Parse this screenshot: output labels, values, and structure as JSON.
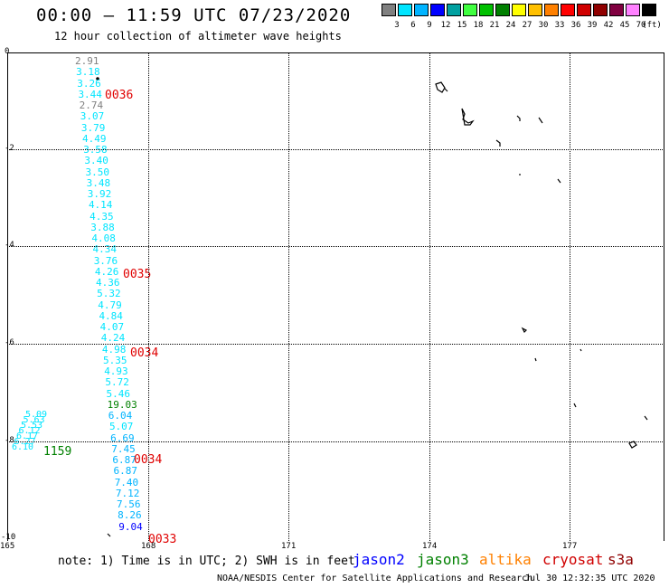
{
  "header": {
    "title": "00:00 – 11:59 UTC 07/23/2020",
    "subtitle": "12 hour collection of altimeter wave heights"
  },
  "legend": {
    "unit": "(ft)",
    "items": [
      {
        "label": "",
        "color": "#808080"
      },
      {
        "label": "3",
        "color": "#00e5ff"
      },
      {
        "label": "6",
        "color": "#00b4ff"
      },
      {
        "label": "9",
        "color": "#0000ff"
      },
      {
        "label": "12",
        "color": "#00a0a0"
      },
      {
        "label": "15",
        "color": "#40ff40"
      },
      {
        "label": "18",
        "color": "#00c000"
      },
      {
        "label": "21",
        "color": "#008000"
      },
      {
        "label": "24",
        "color": "#ffff00"
      },
      {
        "label": "27",
        "color": "#ffc000"
      },
      {
        "label": "30",
        "color": "#ff8000"
      },
      {
        "label": "33",
        "color": "#ff0000"
      },
      {
        "label": "36",
        "color": "#d00000"
      },
      {
        "label": "39",
        "color": "#900000"
      },
      {
        "label": "42",
        "color": "#800040"
      },
      {
        "label": "45",
        "color": "#ff80ff"
      },
      {
        "label": "70",
        "color": "#000000"
      }
    ]
  },
  "map": {
    "y_labels": [
      "0",
      "-2",
      "-4",
      "-6",
      "-8",
      "-10"
    ],
    "x_labels": [
      "165",
      "168",
      "171",
      "174",
      "177"
    ],
    "wave_heights": [
      {
        "v": "2.91",
        "c": "#808080"
      },
      {
        "v": "3.18",
        "c": "#00e5ff"
      },
      {
        "v": "3.26",
        "c": "#00e5ff"
      },
      {
        "v": "3.44",
        "c": "#00e5ff"
      },
      {
        "v": "2.74",
        "c": "#808080"
      },
      {
        "v": "3.07",
        "c": "#00e5ff"
      },
      {
        "v": "3.79",
        "c": "#00e5ff"
      },
      {
        "v": "4.49",
        "c": "#00e5ff"
      },
      {
        "v": "3.58",
        "c": "#00e5ff"
      },
      {
        "v": "3.40",
        "c": "#00e5ff"
      },
      {
        "v": "3.50",
        "c": "#00e5ff"
      },
      {
        "v": "3.48",
        "c": "#00e5ff"
      },
      {
        "v": "3.92",
        "c": "#00e5ff"
      },
      {
        "v": "4.14",
        "c": "#00e5ff"
      },
      {
        "v": "4.35",
        "c": "#00e5ff"
      },
      {
        "v": "3.88",
        "c": "#00e5ff"
      },
      {
        "v": "4.08",
        "c": "#00e5ff"
      },
      {
        "v": "4.34",
        "c": "#00e5ff"
      },
      {
        "v": "3.76",
        "c": "#00e5ff"
      },
      {
        "v": "4.26",
        "c": "#00e5ff"
      },
      {
        "v": "4.36",
        "c": "#00e5ff"
      },
      {
        "v": "5.32",
        "c": "#00e5ff"
      },
      {
        "v": "4.79",
        "c": "#00e5ff"
      },
      {
        "v": "4.84",
        "c": "#00e5ff"
      },
      {
        "v": "4.07",
        "c": "#00e5ff"
      },
      {
        "v": "4.24",
        "c": "#00e5ff"
      },
      {
        "v": "4.98",
        "c": "#00e5ff"
      },
      {
        "v": "5.35",
        "c": "#00e5ff"
      },
      {
        "v": "4.93",
        "c": "#00e5ff"
      },
      {
        "v": "5.72",
        "c": "#00e5ff"
      },
      {
        "v": "5.46",
        "c": "#00e5ff"
      },
      {
        "v": "19.03",
        "c": "#008000"
      },
      {
        "v": "6.04",
        "c": "#00b4ff"
      },
      {
        "v": "5.07",
        "c": "#00e5ff"
      },
      {
        "v": "6.69",
        "c": "#00b4ff"
      },
      {
        "v": "7.45",
        "c": "#00b4ff"
      },
      {
        "v": "6.87",
        "c": "#00b4ff"
      },
      {
        "v": "6.87",
        "c": "#00b4ff"
      },
      {
        "v": "7.40",
        "c": "#00b4ff"
      },
      {
        "v": "7.12",
        "c": "#00b4ff"
      },
      {
        "v": "7.56",
        "c": "#00b4ff"
      },
      {
        "v": "8.26",
        "c": "#00b4ff"
      },
      {
        "v": "9.04",
        "c": "#0000ff"
      }
    ],
    "timestamps": [
      "0036",
      "0035",
      "0034",
      "0034",
      "0033"
    ],
    "jason3_time": "1159",
    "jason3_track": [
      "5.09",
      "5.63",
      "5.53",
      "6.12",
      "6.17",
      "6.27",
      "6.10"
    ]
  },
  "footer": {
    "note": "note: 1) Time is in UTC; 2) SWH is in feet",
    "satellites": [
      {
        "name": "jason2",
        "color": "#0000ff"
      },
      {
        "name": "jason3",
        "color": "#008000"
      },
      {
        "name": "altika",
        "color": "#ff8000"
      },
      {
        "name": "cryosat",
        "color": "#d00000"
      },
      {
        "name": "s3a",
        "color": "#900000"
      }
    ],
    "credit": "NOAA/NESDIS Center for Satellite Applications and Research",
    "generated": "Jul 30 12:32:35 UTC 2020"
  }
}
